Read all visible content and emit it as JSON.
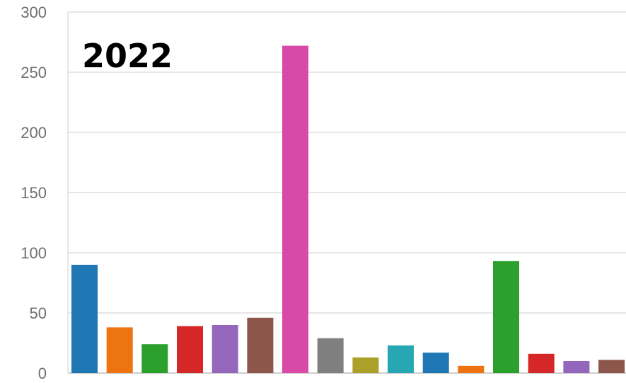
{
  "chart_data": {
    "type": "bar",
    "title": "2022",
    "xlabel": "",
    "ylabel": "",
    "ylim": [
      0,
      300
    ],
    "yticks": [
      0,
      50,
      100,
      150,
      200,
      250,
      300
    ],
    "grid": true,
    "legend": "none",
    "values": [
      90,
      38,
      24,
      39,
      40,
      46,
      272,
      29,
      13,
      23,
      17,
      6,
      93,
      16,
      10,
      11
    ],
    "colors": [
      "#1f77b4",
      "#ee7311",
      "#2ca02c",
      "#d62728",
      "#9467bd",
      "#8c564b",
      "#d84aa6",
      "#7f7f7f",
      "#aaa02a",
      "#27a6b4",
      "#1f77b4",
      "#ee7311",
      "#2ca02c",
      "#d62728",
      "#9467bd",
      "#8c564b"
    ]
  }
}
